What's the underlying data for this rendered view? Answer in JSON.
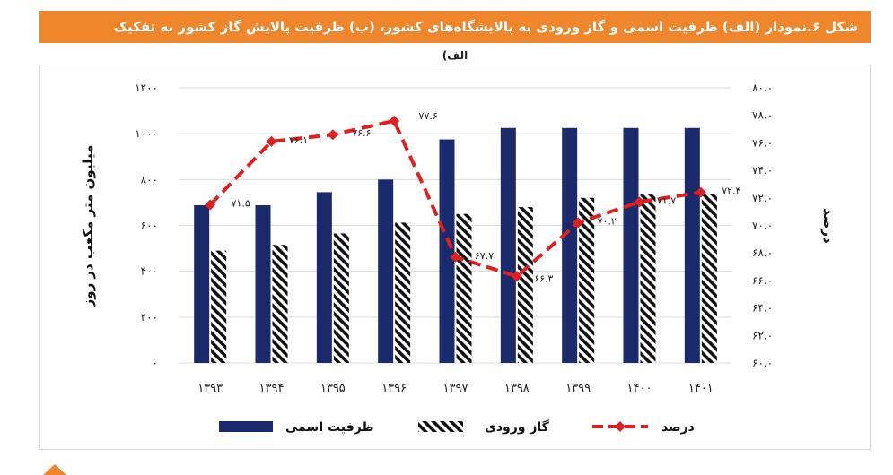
{
  "figure": {
    "caption": "شکل ۶.نمودار (الف) ظرفیت اسمی و گاز ورودی به پالایشگاه‌های کشور، (ب) ظرفیت پالایش گاز کشور به تفکیک پالایشگاه‌ها"
  },
  "chart_data": {
    "type": "bar",
    "subtitle": "الف)",
    "categories": [
      "۱۳۹۳",
      "۱۳۹۴",
      "۱۳۹۵",
      "۱۳۹۶",
      "۱۳۹۷",
      "۱۳۹۸",
      "۱۳۹۹",
      "۱۴۰۰",
      "۱۴۰۱"
    ],
    "series": [
      {
        "name": "ظرفیت اسمی",
        "type": "bar",
        "axis": "left",
        "values": [
          688,
          688,
          745,
          800,
          975,
          1025,
          1025,
          1025,
          1025
        ],
        "color": "#1a2a6c"
      },
      {
        "name": "گاز ورودی",
        "type": "bar",
        "axis": "left",
        "values": [
          490,
          515,
          565,
          612,
          650,
          680,
          720,
          735,
          738
        ],
        "pattern": "diagonal-hatch"
      },
      {
        "name": "درصد",
        "type": "line",
        "axis": "right",
        "values": [
          71.5,
          76.1,
          76.6,
          77.6,
          67.7,
          66.3,
          70.2,
          71.7,
          72.4
        ],
        "color": "#e02020",
        "marker": "diamond",
        "dashed": true,
        "labels": [
          "۷۱.۵",
          "۷۶.۱",
          "۷۶.۶",
          "۷۷.۶",
          "۶۷.۷",
          "۶۶.۳",
          "۷۰.۲",
          "۷۱.۷",
          "۷۲.۴"
        ]
      }
    ],
    "ylabel_left": "میلیون متر مکعب در روز",
    "ylabel_right": "درصد",
    "ylim_left": [
      0,
      1200
    ],
    "ylim_right": [
      60,
      80
    ],
    "yticks_left": [
      "۱۲۰۰",
      "۱۰۰۰",
      "۸۰۰",
      "۶۰۰",
      "۴۰۰",
      "۲۰۰",
      "۰"
    ],
    "yticks_right": [
      "۸۰.۰",
      "۷۸.۰",
      "۷۶.۰",
      "۷۴.۰",
      "۷۲.۰",
      "۷۰.۰",
      "۶۸.۰",
      "۶۶.۰",
      "۶۴.۰",
      "۶۲.۰",
      "۶۰.۰"
    ],
    "grid": true,
    "legend_position": "bottom"
  }
}
